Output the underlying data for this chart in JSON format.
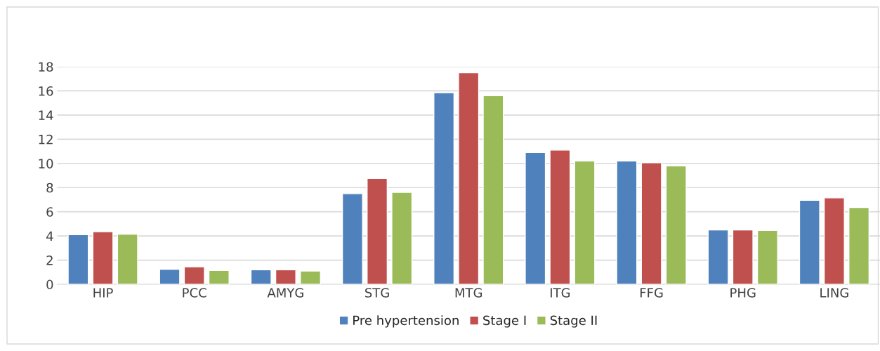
{
  "chart_data": {
    "type": "bar",
    "categories": [
      "HIP",
      "PCC",
      "AMYG",
      "STG",
      "MTG",
      "ITG",
      "FFG",
      "PHG",
      "LING"
    ],
    "series": [
      {
        "name": "Pre hypertension",
        "color": "#4f81bd",
        "values": [
          4.1,
          1.25,
          1.2,
          7.5,
          15.85,
          10.9,
          10.2,
          4.5,
          6.95
        ]
      },
      {
        "name": "Stage I",
        "color": "#c0504d",
        "values": [
          4.35,
          1.45,
          1.2,
          8.75,
          17.5,
          11.1,
          10.05,
          4.5,
          7.15
        ]
      },
      {
        "name": "Stage II",
        "color": "#9bbb59",
        "values": [
          4.15,
          1.15,
          1.1,
          7.6,
          15.6,
          10.2,
          9.8,
          4.45,
          6.35
        ]
      }
    ],
    "ylim": [
      0,
      18
    ],
    "yticks": [
      0,
      2,
      4,
      6,
      8,
      10,
      12,
      14,
      16,
      18
    ],
    "grid": "y",
    "legend": "bottom"
  }
}
